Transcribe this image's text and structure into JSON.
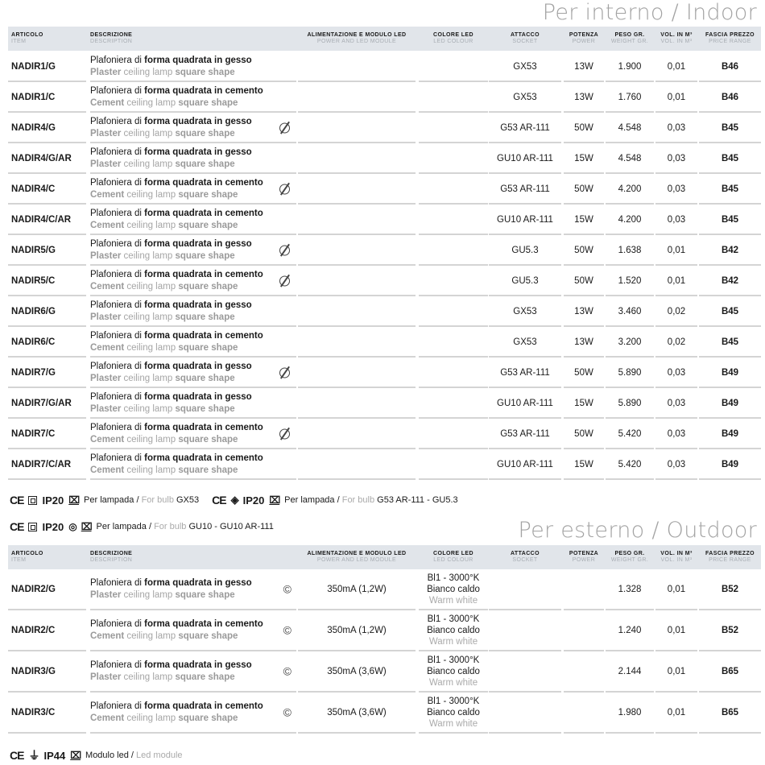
{
  "indoor": {
    "title": "Per interno / Indoor",
    "headers": [
      {
        "it": "ARTICOLO",
        "en": "ITEM"
      },
      {
        "it": "DESCRIZIONE",
        "en": "DESCRIPTION"
      },
      {
        "it": "ALIMENTAZIONE E MODULO LED",
        "en": "POWER AND LED MODULE"
      },
      {
        "it": "COLORE LED",
        "en": "LED COLOUR"
      },
      {
        "it": "ATTACCO",
        "en": "SOCKET"
      },
      {
        "it": "POTENZA",
        "en": "POWER"
      },
      {
        "it": "PESO GR.",
        "en": "WEIGHT GR."
      },
      {
        "it": "VOL. IN M³",
        "en": "VOL. IN M³"
      },
      {
        "it": "FASCIA PREZZO",
        "en": "PRICE RANGE"
      }
    ],
    "rows": [
      {
        "code": "NADIR1/G",
        "it_pre": "Plafoniera di ",
        "it_bold": "forma quadrata in gesso",
        "en_b1": "Plaster",
        "en_mid": " ceiling lamp ",
        "en_b2": "square shape",
        "icon": "",
        "socket": "GX53",
        "power": "13W",
        "weight": "1.900",
        "vol": "0,01",
        "price": "B46"
      },
      {
        "code": "NADIR1/C",
        "it_pre": "Plafoniera di ",
        "it_bold": "forma quadrata in cemento",
        "en_b1": "Cement",
        "en_mid": " ceiling lamp ",
        "en_b2": "square shape",
        "icon": "",
        "socket": "GX53",
        "power": "13W",
        "weight": "1.760",
        "vol": "0,01",
        "price": "B46"
      },
      {
        "code": "NADIR4/G",
        "it_pre": "Plafoniera di ",
        "it_bold": "forma quadrata in gesso",
        "en_b1": "Plaster",
        "en_mid": " ceiling lamp ",
        "en_b2": "square shape",
        "icon": "no-dimmer",
        "socket": "G53 AR-111",
        "power": "50W",
        "weight": "4.548",
        "vol": "0,03",
        "price": "B45"
      },
      {
        "code": "NADIR4/G/AR",
        "it_pre": "Plafoniera di ",
        "it_bold": "forma quadrata in gesso",
        "en_b1": "Plaster",
        "en_mid": " ceiling lamp ",
        "en_b2": "square shape",
        "icon": "",
        "socket": "GU10 AR-111",
        "power": "15W",
        "weight": "4.548",
        "vol": "0,03",
        "price": "B45"
      },
      {
        "code": "NADIR4/C",
        "it_pre": "Plafoniera di ",
        "it_bold": "forma quadrata in cemento",
        "en_b1": "Cement",
        "en_mid": " ceiling lamp ",
        "en_b2": "square shape",
        "icon": "no-dimmer",
        "socket": "G53 AR-111",
        "power": "50W",
        "weight": "4.200",
        "vol": "0,03",
        "price": "B45"
      },
      {
        "code": "NADIR4/C/AR",
        "it_pre": "Plafoniera di ",
        "it_bold": "forma quadrata in cemento",
        "en_b1": "Cement",
        "en_mid": " ceiling lamp ",
        "en_b2": "square shape",
        "icon": "",
        "socket": "GU10 AR-111",
        "power": "15W",
        "weight": "4.200",
        "vol": "0,03",
        "price": "B45"
      },
      {
        "code": "NADIR5/G",
        "it_pre": "Plafoniera di ",
        "it_bold": "forma quadrata in gesso",
        "en_b1": "Plaster",
        "en_mid": " ceiling lamp ",
        "en_b2": "square shape",
        "icon": "no-dimmer",
        "socket": "GU5.3",
        "power": "50W",
        "weight": "1.638",
        "vol": "0,01",
        "price": "B42"
      },
      {
        "code": "NADIR5/C",
        "it_pre": "Plafoniera di ",
        "it_bold": "forma quadrata in cemento",
        "en_b1": "Cement",
        "en_mid": " ceiling lamp ",
        "en_b2": "square shape",
        "icon": "no-dimmer",
        "socket": "GU5.3",
        "power": "50W",
        "weight": "1.520",
        "vol": "0,01",
        "price": "B42"
      },
      {
        "code": "NADIR6/G",
        "it_pre": "Plafoniera di ",
        "it_bold": "forma quadrata in gesso",
        "en_b1": "Plaster",
        "en_mid": " ceiling lamp ",
        "en_b2": "square shape",
        "icon": "",
        "socket": "GX53",
        "power": "13W",
        "weight": "3.460",
        "vol": "0,02",
        "price": "B45"
      },
      {
        "code": "NADIR6/C",
        "it_pre": "Plafoniera di ",
        "it_bold": "forma quadrata in cemento",
        "en_b1": "Cement",
        "en_mid": " ceiling lamp ",
        "en_b2": "square shape",
        "icon": "",
        "socket": "GX53",
        "power": "13W",
        "weight": "3.200",
        "vol": "0,02",
        "price": "B45"
      },
      {
        "code": "NADIR7/G",
        "it_pre": "Plafoniera di ",
        "it_bold": "forma quadrata in gesso",
        "en_b1": "Plaster",
        "en_mid": " ceiling lamp ",
        "en_b2": "square shape",
        "icon": "no-dimmer",
        "socket": "G53 AR-111",
        "power": "50W",
        "weight": "5.890",
        "vol": "0,03",
        "price": "B49"
      },
      {
        "code": "NADIR7/G/AR",
        "it_pre": "Plafoniera di ",
        "it_bold": "forma quadrata in gesso",
        "en_b1": "Plaster",
        "en_mid": " ceiling lamp ",
        "en_b2": "square shape",
        "icon": "",
        "socket": "GU10 AR-111",
        "power": "15W",
        "weight": "5.890",
        "vol": "0,03",
        "price": "B49"
      },
      {
        "code": "NADIR7/C",
        "it_pre": "Plafoniera di ",
        "it_bold": "forma quadrata in cemento",
        "en_b1": "Cement",
        "en_mid": " ceiling lamp ",
        "en_b2": "square shape",
        "icon": "no-dimmer",
        "socket": "G53 AR-111",
        "power": "50W",
        "weight": "5.420",
        "vol": "0,03",
        "price": "B49"
      },
      {
        "code": "NADIR7/C/AR",
        "it_pre": "Plafoniera di ",
        "it_bold": "forma quadrata in cemento",
        "en_b1": "Cement",
        "en_mid": " ceiling lamp ",
        "en_b2": "square shape",
        "icon": "",
        "socket": "GU10 AR-111",
        "power": "15W",
        "weight": "5.420",
        "vol": "0,03",
        "price": "B49"
      }
    ],
    "certs": [
      [
        {
          "ce": "CE",
          "class": "class-ii",
          "ip": "IP20",
          "it": "Per lampada / ",
          "en": "For bulb ",
          "val": "GX53"
        },
        {
          "ce": "CE",
          "class": "class-iii",
          "ip": "IP20",
          "it": "Per lampada / ",
          "en": "For bulb ",
          "val": "G53 AR-111 - GU5.3"
        }
      ],
      [
        {
          "ce": "CE",
          "class": "class-ii",
          "ip": "IP20",
          "extra": "halogen-lamp",
          "it": "Per lampada / ",
          "en": "For bulb ",
          "val": "GU10 - GU10 AR-111"
        }
      ]
    ]
  },
  "outdoor": {
    "title": "Per esterno / Outdoor",
    "rows": [
      {
        "code": "NADIR2/G",
        "it_pre": "Plafoniera di ",
        "it_bold": "forma quadrata in gesso",
        "en_b1": "Plaster",
        "en_mid": " ceiling lamp ",
        "en_b2": "square shape",
        "icon": "©",
        "module": "350mA (1,2W)",
        "color1": "Bl1 - 3000°K",
        "color2": "Bianco caldo",
        "color3": "Warm white",
        "weight": "1.328",
        "vol": "0,01",
        "price": "B52"
      },
      {
        "code": "NADIR2/C",
        "it_pre": "Plafoniera di ",
        "it_bold": "forma quadrata in cemento",
        "en_b1": "Cement",
        "en_mid": " ceiling lamp ",
        "en_b2": "square shape",
        "icon": "©",
        "module": "350mA (1,2W)",
        "color1": "Bl1 - 3000°K",
        "color2": "Bianco caldo",
        "color3": "Warm white",
        "weight": "1.240",
        "vol": "0,01",
        "price": "B52"
      },
      {
        "code": "NADIR3/G",
        "it_pre": "Plafoniera di ",
        "it_bold": "forma quadrata in gesso",
        "en_b1": "Plaster",
        "en_mid": " ceiling lamp ",
        "en_b2": "square shape",
        "icon": "©",
        "module": "350mA (3,6W)",
        "color1": "Bl1 - 3000°K",
        "color2": "Bianco caldo",
        "color3": "Warm white",
        "weight": "2.144",
        "vol": "0,01",
        "price": "B65"
      },
      {
        "code": "NADIR3/C",
        "it_pre": "Plafoniera di ",
        "it_bold": "forma quadrata in cemento",
        "en_b1": "Cement",
        "en_mid": " ceiling lamp ",
        "en_b2": "square shape",
        "icon": "©",
        "module": "350mA (3,6W)",
        "color1": "Bl1 - 3000°K",
        "color2": "Bianco caldo",
        "color3": "Warm white",
        "weight": "1.980",
        "vol": "0,01",
        "price": "B65"
      }
    ],
    "cert": {
      "ce": "CE",
      "class": "class-i",
      "ip": "IP44",
      "it": "Modulo led / ",
      "en": "Led module"
    }
  }
}
